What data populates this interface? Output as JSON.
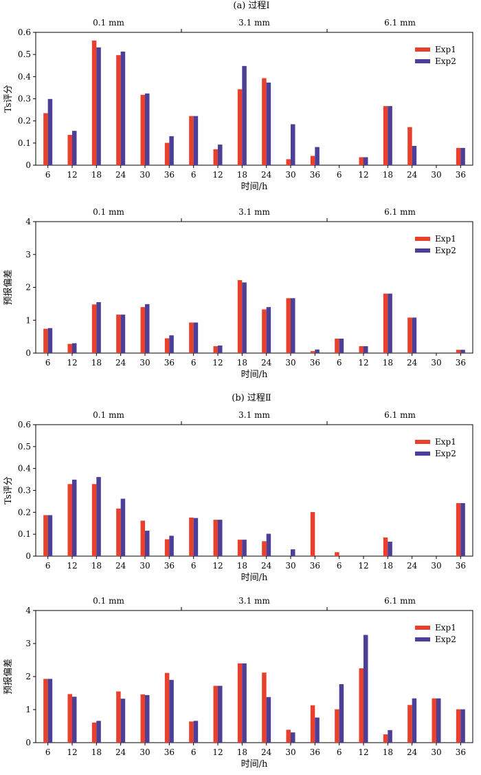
{
  "section_titles": [
    "(a) 过程Ⅰ",
    "(b) 过程Ⅱ"
  ],
  "colors": {
    "Exp1": "#e8402c",
    "Exp2": "#4b3f98"
  },
  "chart_data": [
    {
      "type": "bar",
      "section": "(a) 过程Ⅰ",
      "groups": [
        "0.1 mm",
        "3.1 mm",
        "6.1 mm"
      ],
      "categories": [
        "6",
        "12",
        "18",
        "24",
        "30",
        "36",
        "6",
        "12",
        "18",
        "24",
        "30",
        "36",
        "6",
        "12",
        "18",
        "24",
        "30",
        "36"
      ],
      "xlabel": "时间/h",
      "ylabel": "Ts评分",
      "ylim": [
        0,
        0.6
      ],
      "yticks": [
        "0",
        "0.1",
        "0.2",
        "0.3",
        "0.4",
        "0.5",
        "0.6"
      ],
      "legend_position": "top-right",
      "series": [
        {
          "name": "Exp1",
          "values": [
            0.235,
            0.137,
            0.563,
            0.497,
            0.318,
            0.101,
            0.222,
            0.072,
            0.343,
            0.393,
            0.027,
            0.042,
            0,
            0.036,
            0.267,
            0.172,
            0,
            0.078
          ]
        },
        {
          "name": "Exp2",
          "values": [
            0.299,
            0.155,
            0.532,
            0.513,
            0.324,
            0.131,
            0.222,
            0.093,
            0.448,
            0.373,
            0.185,
            0.082,
            0,
            0.036,
            0.267,
            0.087,
            0,
            0.078
          ]
        }
      ]
    },
    {
      "type": "bar",
      "section": "(a) 过程Ⅰ",
      "groups": [
        "0.1 mm",
        "3.1 mm",
        "6.1 mm"
      ],
      "categories": [
        "6",
        "12",
        "18",
        "24",
        "30",
        "36",
        "6",
        "12",
        "18",
        "24",
        "30",
        "36",
        "6",
        "12",
        "18",
        "24",
        "30",
        "36"
      ],
      "xlabel": "时间/h",
      "ylabel": "预报偏差",
      "ylim": [
        0,
        4
      ],
      "yticks": [
        "0",
        "1",
        "2",
        "3",
        "4"
      ],
      "legend_position": "top-right",
      "series": [
        {
          "name": "Exp1",
          "values": [
            0.74,
            0.28,
            1.48,
            1.17,
            1.4,
            0.45,
            0.93,
            0.21,
            2.22,
            1.33,
            1.67,
            0.06,
            0.44,
            0.21,
            1.81,
            1.08,
            0,
            0.1
          ]
        },
        {
          "name": "Exp2",
          "values": [
            0.76,
            0.3,
            1.55,
            1.17,
            1.49,
            0.54,
            0.93,
            0.23,
            2.15,
            1.4,
            1.67,
            0.11,
            0.44,
            0.21,
            1.81,
            1.08,
            0,
            0.1
          ]
        }
      ]
    },
    {
      "type": "bar",
      "section": "(b) 过程Ⅱ",
      "groups": [
        "0.1 mm",
        "3.1 mm",
        "6.1 mm"
      ],
      "categories": [
        "6",
        "12",
        "18",
        "24",
        "30",
        "36",
        "6",
        "12",
        "18",
        "24",
        "30",
        "36",
        "6",
        "12",
        "18",
        "24",
        "30",
        "36"
      ],
      "xlabel": "时间/h",
      "ylabel": "Ts评分",
      "ylim": [
        0,
        0.6
      ],
      "yticks": [
        "0",
        "0.1",
        "0.2",
        "0.3",
        "0.4",
        "0.5",
        "0.6"
      ],
      "legend_position": "top-right",
      "series": [
        {
          "name": "Exp1",
          "values": [
            0.187,
            0.329,
            0.329,
            0.217,
            0.162,
            0.077,
            0.176,
            0.166,
            0.075,
            0.068,
            0,
            0.201,
            0.018,
            0,
            0.085,
            0,
            0,
            0.242
          ]
        },
        {
          "name": "Exp2",
          "values": [
            0.187,
            0.349,
            0.361,
            0.262,
            0.116,
            0.093,
            0.174,
            0.166,
            0.075,
            0.102,
            0.031,
            0,
            0,
            0,
            0.066,
            0,
            0,
            0.242
          ]
        }
      ]
    },
    {
      "type": "bar",
      "section": "(b) 过程Ⅱ",
      "groups": [
        "0.1 mm",
        "3.1 mm",
        "6.1 mm"
      ],
      "categories": [
        "6",
        "12",
        "18",
        "24",
        "30",
        "36",
        "6",
        "12",
        "18",
        "24",
        "30",
        "36",
        "6",
        "12",
        "18",
        "24",
        "30",
        "36"
      ],
      "xlabel": "时间/h",
      "ylabel": "预报偏差",
      "ylim": [
        0,
        4
      ],
      "yticks": [
        "0",
        "1",
        "2",
        "3",
        "4"
      ],
      "legend_position": "top-right",
      "series": [
        {
          "name": "Exp1",
          "values": [
            1.93,
            1.47,
            0.61,
            1.55,
            1.46,
            2.11,
            0.64,
            1.72,
            2.4,
            2.12,
            0.39,
            1.13,
            1.01,
            2.25,
            0.25,
            1.14,
            1.34,
            1.01
          ]
        },
        {
          "name": "Exp2",
          "values": [
            1.93,
            1.39,
            0.66,
            1.33,
            1.44,
            1.9,
            0.66,
            1.72,
            2.4,
            1.38,
            0.31,
            0.76,
            1.77,
            3.26,
            0.38,
            1.34,
            1.34,
            1.01
          ]
        }
      ]
    }
  ]
}
